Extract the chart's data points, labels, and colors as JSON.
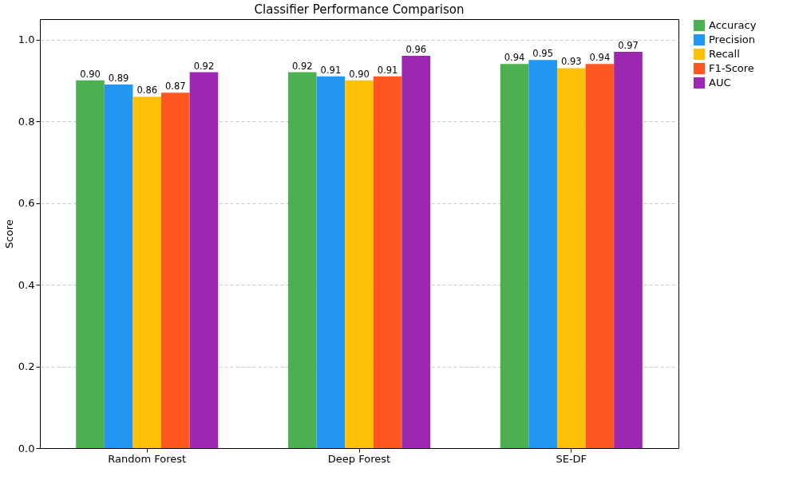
{
  "chart_data": {
    "type": "bar",
    "title": "Classifier Performance Comparison",
    "ylabel": "Score",
    "categories": [
      "Random Forest",
      "Deep Forest",
      "SE-DF"
    ],
    "series": [
      {
        "name": "Accuracy",
        "color": "#4caf50",
        "values": [
          0.9,
          0.92,
          0.94
        ],
        "value_labels": [
          "0.90",
          "0.92",
          "0.94"
        ]
      },
      {
        "name": "Precision",
        "color": "#2196f3",
        "values": [
          0.89,
          0.91,
          0.95
        ],
        "value_labels": [
          "0.89",
          "0.91",
          "0.95"
        ]
      },
      {
        "name": "Recall",
        "color": "#ffc107",
        "values": [
          0.86,
          0.9,
          0.93
        ],
        "value_labels": [
          "0.86",
          "0.90",
          "0.93"
        ]
      },
      {
        "name": "F1-Score",
        "color": "#ff5722",
        "values": [
          0.87,
          0.91,
          0.94
        ],
        "value_labels": [
          "0.87",
          "0.91",
          "0.94"
        ]
      },
      {
        "name": "AUC",
        "color": "#9c27b0",
        "values": [
          0.92,
          0.96,
          0.97
        ],
        "value_labels": [
          "0.92",
          "0.96",
          "0.97"
        ]
      }
    ],
    "ylim": [
      0,
      1.05
    ],
    "yticks": [
      {
        "value": 0,
        "label": "0.0"
      },
      0.2,
      0.4,
      0.6,
      0.8,
      {
        "value": 1,
        "label": "1.0"
      }
    ],
    "grid": "y",
    "legend": "top right"
  }
}
